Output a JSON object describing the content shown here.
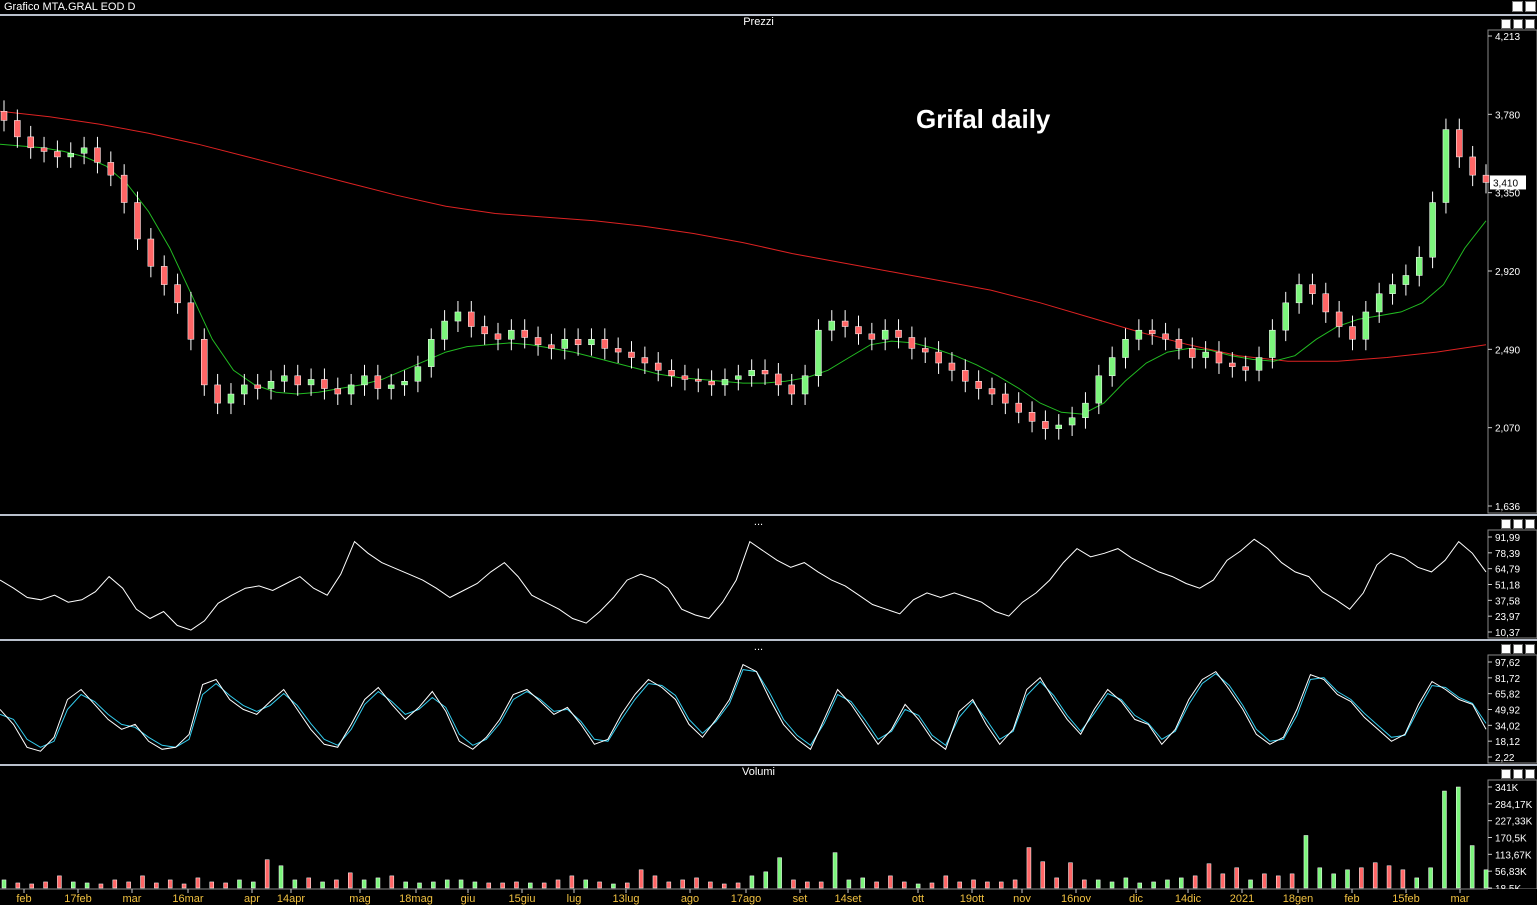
{
  "window": {
    "title": "Grafico MTA.GRAL EOD D"
  },
  "panels": {
    "price": {
      "label": "Prezzi"
    },
    "rsi": {
      "label": "..."
    },
    "stoch": {
      "label": "..."
    },
    "volume": {
      "label": "Volumi"
    }
  },
  "colors": {
    "up_candle": "#7cf57c",
    "down_candle": "#ff6666",
    "ma_short": "#22bb22",
    "ma_long": "#dd2222",
    "stoch_k": "#ffffff",
    "stoch_d": "#33ccee",
    "divider": "#b9c0cc"
  },
  "chart_data": [
    {
      "type": "candlestick",
      "title": "Grifal daily",
      "panel": "Prezzi",
      "y_ticks": [
        "4,213",
        "3,780",
        "3,350",
        "2,920",
        "2,490",
        "2,070",
        "1,636"
      ],
      "ylim": [
        1.636,
        4.213
      ],
      "last_price": "3,410",
      "x_labels": [
        "feb",
        "17feb",
        "mar",
        "16mar",
        "apr",
        "14apr",
        "mag",
        "18mag",
        "giu",
        "15giu",
        "lug",
        "13lug",
        "ago",
        "17ago",
        "set",
        "14set",
        "ott",
        "19ott",
        "nov",
        "16nov",
        "dic",
        "14dic",
        "2021",
        "18gen",
        "feb",
        "15feb",
        "mar"
      ],
      "close_series": [
        3.75,
        3.66,
        3.6,
        3.58,
        3.55,
        3.57,
        3.6,
        3.52,
        3.45,
        3.3,
        3.1,
        2.95,
        2.85,
        2.75,
        2.55,
        2.3,
        2.2,
        2.25,
        2.3,
        2.28,
        2.32,
        2.35,
        2.3,
        2.33,
        2.28,
        2.25,
        2.3,
        2.35,
        2.28,
        2.3,
        2.32,
        2.4,
        2.55,
        2.65,
        2.7,
        2.62,
        2.58,
        2.55,
        2.6,
        2.56,
        2.52,
        2.5,
        2.55,
        2.52,
        2.55,
        2.5,
        2.48,
        2.45,
        2.42,
        2.38,
        2.35,
        2.33,
        2.32,
        2.3,
        2.33,
        2.35,
        2.38,
        2.36,
        2.3,
        2.25,
        2.35,
        2.6,
        2.65,
        2.62,
        2.58,
        2.55,
        2.6,
        2.56,
        2.5,
        2.48,
        2.42,
        2.38,
        2.32,
        2.28,
        2.25,
        2.2,
        2.15,
        2.1,
        2.06,
        2.08,
        2.12,
        2.2,
        2.35,
        2.45,
        2.55,
        2.6,
        2.58,
        2.55,
        2.5,
        2.45,
        2.48,
        2.42,
        2.4,
        2.38,
        2.45,
        2.6,
        2.75,
        2.85,
        2.8,
        2.7,
        2.62,
        2.55,
        2.7,
        2.8,
        2.85,
        2.9,
        3.0,
        3.3,
        3.7,
        3.55,
        3.45,
        3.41
      ],
      "ma_short": [
        3.62,
        3.61,
        3.6,
        3.58,
        3.55,
        3.5,
        3.4,
        3.25,
        3.05,
        2.8,
        2.55,
        2.38,
        2.3,
        2.26,
        2.25,
        2.26,
        2.28,
        2.3,
        2.33,
        2.38,
        2.43,
        2.48,
        2.51,
        2.52,
        2.53,
        2.52,
        2.5,
        2.48,
        2.45,
        2.42,
        2.39,
        2.36,
        2.34,
        2.33,
        2.32,
        2.31,
        2.31,
        2.32,
        2.34,
        2.38,
        2.45,
        2.52,
        2.54,
        2.53,
        2.5,
        2.46,
        2.41,
        2.35,
        2.28,
        2.2,
        2.15,
        2.14,
        2.2,
        2.32,
        2.42,
        2.48,
        2.5,
        2.49,
        2.46,
        2.44,
        2.43,
        2.46,
        2.55,
        2.62,
        2.66,
        2.68,
        2.7,
        2.75,
        2.85,
        3.05,
        3.2
      ],
      "ma_long": [
        3.8,
        3.77,
        3.73,
        3.68,
        3.62,
        3.55,
        3.48,
        3.41,
        3.34,
        3.28,
        3.24,
        3.22,
        3.2,
        3.17,
        3.13,
        3.08,
        3.02,
        2.97,
        2.92,
        2.87,
        2.82,
        2.75,
        2.67,
        2.59,
        2.52,
        2.46,
        2.43,
        2.43,
        2.45,
        2.48,
        2.52
      ]
    },
    {
      "type": "line",
      "panel": "RSI",
      "y_ticks": [
        "91,99",
        "78,39",
        "64,79",
        "51,18",
        "37,58",
        "23,97",
        "10,37"
      ],
      "ylim": [
        10.37,
        91.99
      ],
      "values": [
        55,
        48,
        40,
        38,
        42,
        36,
        38,
        45,
        58,
        48,
        30,
        22,
        28,
        16,
        12,
        20,
        35,
        42,
        48,
        50,
        46,
        52,
        58,
        48,
        42,
        60,
        88,
        78,
        70,
        65,
        60,
        55,
        48,
        40,
        46,
        52,
        62,
        70,
        58,
        42,
        36,
        30,
        22,
        18,
        28,
        40,
        55,
        60,
        56,
        48,
        30,
        25,
        22,
        36,
        55,
        88,
        80,
        72,
        66,
        70,
        62,
        55,
        50,
        42,
        34,
        30,
        26,
        38,
        44,
        40,
        44,
        40,
        36,
        28,
        24,
        36,
        44,
        55,
        70,
        82,
        75,
        78,
        82,
        74,
        68,
        62,
        58,
        52,
        48,
        55,
        72,
        80,
        90,
        82,
        70,
        62,
        58,
        45,
        38,
        30,
        44,
        68,
        78,
        74,
        66,
        62,
        72,
        88,
        78,
        62
      ]
    },
    {
      "type": "line",
      "panel": "Stochastic",
      "y_ticks": [
        "97,62",
        "81,72",
        "65,82",
        "49,92",
        "34,02",
        "18,12",
        "2,22"
      ],
      "ylim": [
        2.22,
        97.62
      ],
      "series": [
        {
          "values": [
            50,
            35,
            12,
            8,
            22,
            60,
            70,
            55,
            40,
            30,
            35,
            18,
            10,
            12,
            25,
            75,
            80,
            60,
            50,
            45,
            58,
            70,
            50,
            30,
            15,
            12,
            35,
            60,
            72,
            55,
            40,
            52,
            68,
            48,
            18,
            10,
            22,
            40,
            65,
            70,
            58,
            45,
            52,
            35,
            15,
            20,
            45,
            65,
            80,
            72,
            60,
            35,
            22,
            40,
            60,
            95,
            88,
            60,
            35,
            20,
            10,
            40,
            70,
            55,
            35,
            15,
            30,
            55,
            40,
            20,
            10,
            48,
            60,
            35,
            15,
            30,
            70,
            82,
            60,
            40,
            25,
            50,
            70,
            58,
            40,
            35,
            15,
            30,
            60,
            80,
            88,
            70,
            50,
            25,
            15,
            22,
            50,
            85,
            80,
            65,
            58,
            42,
            30,
            18,
            25,
            55,
            78,
            70,
            60,
            55,
            30
          ]
        },
        {
          "values": [
            45,
            40,
            20,
            12,
            18,
            50,
            65,
            58,
            45,
            35,
            32,
            22,
            14,
            12,
            20,
            65,
            76,
            64,
            54,
            48,
            54,
            66,
            54,
            36,
            20,
            14,
            30,
            55,
            68,
            58,
            45,
            50,
            62,
            52,
            25,
            14,
            20,
            36,
            60,
            68,
            60,
            48,
            50,
            38,
            20,
            18,
            40,
            60,
            76,
            74,
            64,
            40,
            26,
            38,
            56,
            90,
            88,
            66,
            40,
            24,
            14,
            36,
            65,
            58,
            40,
            20,
            28,
            50,
            44,
            24,
            14,
            42,
            58,
            40,
            20,
            28,
            64,
            78,
            64,
            44,
            28,
            46,
            66,
            60,
            44,
            36,
            20,
            28,
            55,
            76,
            86,
            74,
            54,
            30,
            18,
            20,
            44,
            80,
            82,
            68,
            60,
            46,
            34,
            22,
            24,
            50,
            74,
            72,
            62,
            56,
            36
          ]
        }
      ]
    },
    {
      "type": "bar",
      "panel": "Volumi",
      "y_ticks": [
        "341K",
        "284,17K",
        "227,33K",
        "170,5K",
        "113,67K",
        "56,83K",
        "18,5K"
      ],
      "ylim": [
        0,
        341000
      ],
      "values": [
        8,
        5,
        4,
        6,
        12,
        6,
        5,
        4,
        8,
        6,
        12,
        5,
        8,
        4,
        10,
        6,
        5,
        8,
        6,
        28,
        22,
        8,
        10,
        6,
        8,
        15,
        8,
        10,
        12,
        6,
        5,
        6,
        8,
        8,
        6,
        5,
        5,
        6,
        5,
        5,
        8,
        12,
        8,
        6,
        4,
        5,
        18,
        12,
        6,
        8,
        10,
        6,
        4,
        5,
        12,
        16,
        30,
        8,
        6,
        6,
        35,
        8,
        10,
        6,
        12,
        6,
        4,
        5,
        12,
        6,
        8,
        6,
        6,
        8,
        40,
        26,
        10,
        25,
        8,
        8,
        6,
        10,
        5,
        6,
        8,
        10,
        12,
        24,
        14,
        20,
        8,
        14,
        12,
        14,
        52,
        20,
        14,
        18,
        20,
        25,
        22,
        18,
        10,
        20,
        96,
        100,
        42,
        18
      ]
    }
  ]
}
